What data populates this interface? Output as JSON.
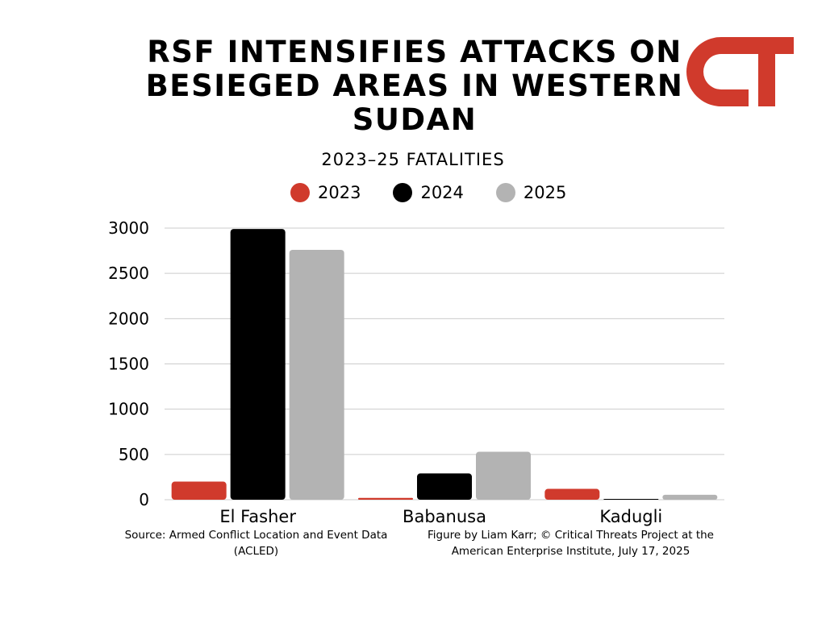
{
  "header": {
    "title": "RSF INTENSIFIES ATTACKS ON BESIEGED AREAS IN WESTERN SUDAN",
    "subtitle": "2023–25 FATALITIES",
    "logo_text": "CT"
  },
  "colors": {
    "accent_red": "#d03a2c",
    "black": "#000000",
    "gray": "#b3b3b3",
    "grid": "#cccccc"
  },
  "chart_data": {
    "type": "bar",
    "categories": [
      "El Fasher",
      "Babanusa",
      "Kadugli"
    ],
    "series": [
      {
        "name": "2023",
        "color": "#d03a2c",
        "values": [
          200,
          20,
          120
        ]
      },
      {
        "name": "2024",
        "color": "#000000",
        "values": [
          2990,
          290,
          5
        ]
      },
      {
        "name": "2025",
        "color": "#b3b3b3",
        "values": [
          2760,
          530,
          55
        ]
      }
    ],
    "ylim": [
      0,
      3000
    ],
    "yticks": [
      0,
      500,
      1000,
      1500,
      2000,
      2500,
      3000
    ],
    "grid": true,
    "legend": "top-center"
  },
  "footer": {
    "source": "Source: Armed Conflict Location and Event Data (ACLED)",
    "credit": "Figure by Liam Karr; © Critical Threats Project at the American Enterprise Institute, July 17, 2025"
  }
}
